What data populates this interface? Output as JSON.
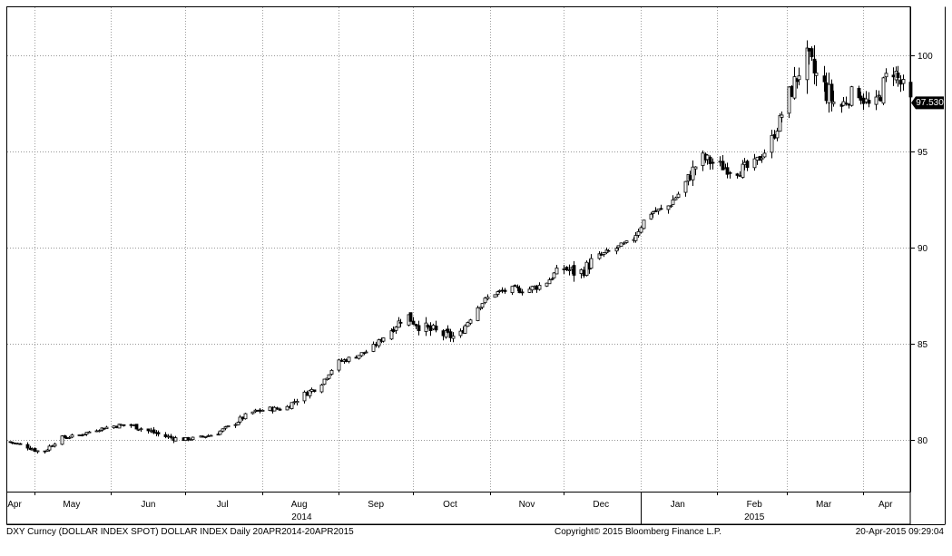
{
  "chart_data": {
    "type": "candlestick",
    "footer": {
      "left": "DXY Curncy (DOLLAR INDEX SPOT) DOLLAR INDEX  Daily 20APR2014-20APR2015",
      "center": "Copyright© 2015 Bloomberg Finance L.P.",
      "right": "20-Apr-2015 09:29:04"
    },
    "last_price_label": "97.530",
    "y_axis": {
      "position": "right",
      "ticks": [
        80,
        85,
        90,
        95,
        100
      ],
      "tick_labels": [
        "80",
        "85",
        "90",
        "95",
        "100"
      ],
      "range": [
        77.3,
        102.5
      ]
    },
    "x_axis": {
      "start": "2014-04-20",
      "end": "2015-04-20",
      "month_labels": [
        "Apr",
        "May",
        "Jun",
        "Jul",
        "Aug",
        "Sep",
        "Oct",
        "Nov",
        "Dec",
        "Jan",
        "Feb",
        "Mar",
        "Apr"
      ],
      "month_label_dates": [
        "2014-04-20",
        "2014-05-16",
        "2014-06-16",
        "2014-07-16",
        "2014-08-16",
        "2014-09-16",
        "2014-10-16",
        "2014-11-16",
        "2014-12-16",
        "2015-01-16",
        "2015-02-16",
        "2015-03-16",
        "2015-04-10"
      ],
      "gridline_dates": [
        "2014-05-01",
        "2014-06-01",
        "2014-07-01",
        "2014-08-01",
        "2014-09-01",
        "2014-10-01",
        "2014-11-01",
        "2014-12-01",
        "2015-01-01",
        "2015-02-01",
        "2015-03-01",
        "2015-04-01"
      ],
      "year_labels": [
        "2014",
        "2015"
      ],
      "year_label_dates": [
        "2014-08-17",
        "2015-02-16"
      ],
      "year_divider_date": "2015-01-01"
    },
    "grid": true,
    "series": [
      {
        "x": [
          "2014-04-20",
          "2014-04-27",
          "2014-05-04",
          "2014-05-11",
          "2014-05-18",
          "2014-05-25",
          "2014-06-01",
          "2014-06-08",
          "2014-06-15",
          "2014-06-22",
          "2014-06-29",
          "2014-07-06",
          "2014-07-13",
          "2014-07-20",
          "2014-07-27",
          "2014-08-03",
          "2014-08-10",
          "2014-08-17",
          "2014-08-24",
          "2014-08-31",
          "2014-09-07",
          "2014-09-14",
          "2014-09-21",
          "2014-09-28",
          "2014-10-05",
          "2014-10-12",
          "2014-10-19",
          "2014-10-26",
          "2014-11-02",
          "2014-11-09",
          "2014-11-16",
          "2014-11-23",
          "2014-11-30",
          "2014-12-07",
          "2014-12-14",
          "2014-12-21",
          "2014-12-28",
          "2015-01-04",
          "2015-01-11",
          "2015-01-18",
          "2015-01-25",
          "2015-02-01",
          "2015-02-08",
          "2015-02-15",
          "2015-02-22",
          "2015-03-01",
          "2015-03-08",
          "2015-03-15",
          "2015-03-22",
          "2015-03-29",
          "2015-04-05",
          "2015-04-12",
          "2015-04-20"
        ],
        "y": [
          79.9,
          79.7,
          79.3,
          80.1,
          80.2,
          80.5,
          80.7,
          80.8,
          80.5,
          80.2,
          80.0,
          80.1,
          80.3,
          80.8,
          81.4,
          81.6,
          81.6,
          82.3,
          82.8,
          84.0,
          84.3,
          84.7,
          85.6,
          86.5,
          85.8,
          85.5,
          85.3,
          86.8,
          87.6,
          87.8,
          87.8,
          88.1,
          89.0,
          88.6,
          89.5,
          89.9,
          90.3,
          91.8,
          92.0,
          93.1,
          94.7,
          94.3,
          94.0,
          94.2,
          95.3,
          97.6,
          99.8,
          98.5,
          97.2,
          98.3,
          97.0,
          99.5,
          97.53
        ],
        "high": [
          80.0,
          79.8,
          79.5,
          80.2,
          80.4,
          80.7,
          81.0,
          81.1,
          80.8,
          80.5,
          80.2,
          80.3,
          80.6,
          81.1,
          81.7,
          81.8,
          82.0,
          82.7,
          83.1,
          84.3,
          84.5,
          85.0,
          86.0,
          86.7,
          86.1,
          85.9,
          86.0,
          87.2,
          88.0,
          88.2,
          88.3,
          88.5,
          89.4,
          89.6,
          89.7,
          90.3,
          90.9,
          92.3,
          92.5,
          94.0,
          95.4,
          95.0,
          94.8,
          95.1,
          95.8,
          98.5,
          100.4,
          100.3,
          97.7,
          98.8,
          98.1,
          100.0,
          98.5
        ],
        "low": [
          79.8,
          79.4,
          78.9,
          79.9,
          80.0,
          80.4,
          80.6,
          80.6,
          80.2,
          79.8,
          79.8,
          80.0,
          80.2,
          80.6,
          81.1,
          81.4,
          81.4,
          82.1,
          82.5,
          83.8,
          83.9,
          84.5,
          85.3,
          85.5,
          84.5,
          84.7,
          85.1,
          86.5,
          87.4,
          87.5,
          87.5,
          87.7,
          88.6,
          87.6,
          89.0,
          89.7,
          90.1,
          91.3,
          91.8,
          92.7,
          93.8,
          93.7,
          93.5,
          93.8,
          95.0,
          96.7,
          97.9,
          96.2,
          96.5,
          96.8,
          96.7,
          97.2,
          97.2
        ]
      }
    ]
  }
}
